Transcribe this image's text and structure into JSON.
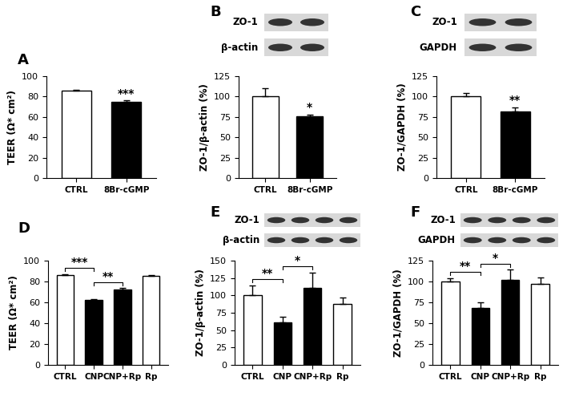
{
  "chart_data": [
    {
      "type": "bar",
      "title": "A",
      "categories": [
        "CTRL",
        "8Br-cGMP"
      ],
      "values": [
        86,
        75
      ],
      "errors": [
        0.8,
        1.5
      ],
      "colors": [
        "#ffffff",
        "#000000"
      ],
      "y_label": "TEER (Ω* cm²)",
      "ylim": [
        0,
        100
      ],
      "yticks": [
        0,
        20,
        40,
        60,
        80,
        100
      ],
      "significance": [
        {
          "on": "8Br-cGMP",
          "label": "***"
        }
      ]
    },
    {
      "type": "bar",
      "title": "B",
      "categories": [
        "CTRL",
        "8Br-cGMP"
      ],
      "values": [
        100,
        76
      ],
      "errors": [
        10,
        2
      ],
      "colors": [
        "#ffffff",
        "#000000"
      ],
      "y_label": "ZO-1/β-actin (%)",
      "ylim": [
        0,
        125
      ],
      "yticks": [
        0,
        25,
        50,
        75,
        100,
        125
      ],
      "blot": [
        "ZO-1",
        "β-actin"
      ],
      "significance": [
        {
          "on": "8Br-cGMP",
          "label": "*"
        }
      ]
    },
    {
      "type": "bar",
      "title": "C",
      "categories": [
        "CTRL",
        "8Br-cGMP"
      ],
      "values": [
        100,
        82
      ],
      "errors": [
        4,
        5
      ],
      "colors": [
        "#ffffff",
        "#000000"
      ],
      "y_label": "ZO-1/GAPDH (%)",
      "ylim": [
        0,
        125
      ],
      "yticks": [
        0,
        25,
        50,
        75,
        100,
        125
      ],
      "blot": [
        "ZO-1",
        "GAPDH"
      ],
      "significance": [
        {
          "on": "8Br-cGMP",
          "label": "**"
        }
      ]
    },
    {
      "type": "bar",
      "title": "D",
      "categories": [
        "CTRL",
        "CNP",
        "CNP+Rp",
        "Rp"
      ],
      "values": [
        86,
        62,
        72,
        85.5
      ],
      "errors": [
        0.8,
        1,
        1.5,
        1
      ],
      "colors": [
        "#ffffff",
        "#000000",
        "#000000",
        "#ffffff"
      ],
      "y_label": "TEER (Ω* cm²)",
      "ylim": [
        0,
        100
      ],
      "yticks": [
        0,
        20,
        40,
        60,
        80,
        100
      ],
      "significance": [
        {
          "between": [
            "CTRL",
            "CNP"
          ],
          "label": "***"
        },
        {
          "between": [
            "CNP",
            "CNP+Rp"
          ],
          "label": "**"
        }
      ]
    },
    {
      "type": "bar",
      "title": "E",
      "categories": [
        "CTRL",
        "CNP",
        "CNP+Rp",
        "Rp"
      ],
      "values": [
        100,
        61,
        111,
        88
      ],
      "errors": [
        14,
        8,
        22,
        9
      ],
      "colors": [
        "#ffffff",
        "#000000",
        "#000000",
        "#ffffff"
      ],
      "y_label": "ZO-1/β-actin (%)",
      "ylim": [
        0,
        150
      ],
      "yticks": [
        0,
        25,
        50,
        75,
        100,
        125,
        150
      ],
      "blot": [
        "ZO-1",
        "β-actin"
      ],
      "significance": [
        {
          "between": [
            "CTRL",
            "CNP"
          ],
          "label": "**"
        },
        {
          "between": [
            "CNP",
            "CNP+Rp"
          ],
          "label": "*"
        }
      ]
    },
    {
      "type": "bar",
      "title": "F",
      "categories": [
        "CTRL",
        "CNP",
        "CNP+Rp",
        "Rp"
      ],
      "values": [
        100,
        68,
        102,
        97
      ],
      "errors": [
        4,
        7,
        12,
        8
      ],
      "colors": [
        "#ffffff",
        "#000000",
        "#000000",
        "#ffffff"
      ],
      "y_label": "ZO-1/GAPDH (%)",
      "ylim": [
        0,
        125
      ],
      "yticks": [
        0,
        25,
        50,
        75,
        100,
        125
      ],
      "blot": [
        "ZO-1",
        "GAPDH"
      ],
      "significance": [
        {
          "between": [
            "CTRL",
            "CNP"
          ],
          "label": "**"
        },
        {
          "between": [
            "CNP",
            "CNP+Rp"
          ],
          "label": "*"
        }
      ]
    }
  ]
}
